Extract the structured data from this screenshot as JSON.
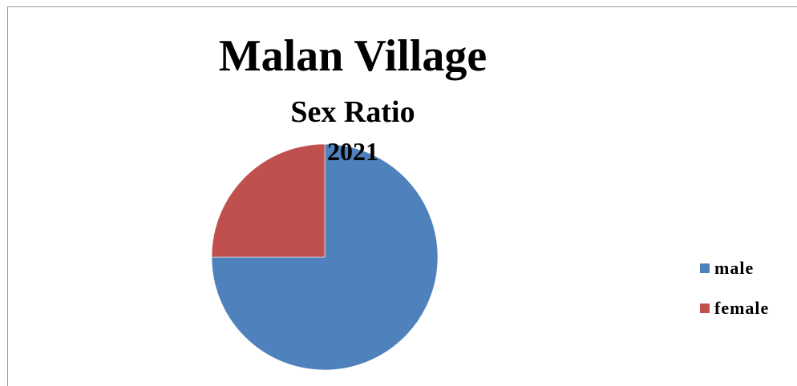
{
  "chart_data": {
    "type": "pie",
    "title": "Malan Village",
    "subtitle": "Sex Ratio",
    "year_label": "2021",
    "categories": [
      "male",
      "female"
    ],
    "values": [
      75,
      25
    ],
    "colors": [
      "#4f81bd",
      "#c0504d"
    ],
    "legend_position": "right"
  }
}
